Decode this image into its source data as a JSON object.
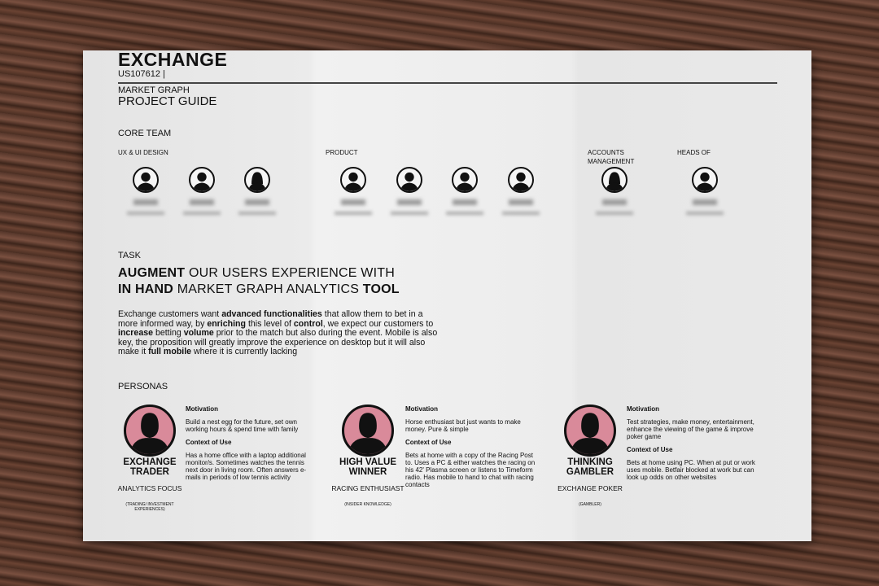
{
  "header": {
    "title": "EXCHANGE",
    "code": "US107612 |",
    "subtitle_small": "MARKET GRAPH",
    "subtitle": "PROJECT GUIDE"
  },
  "core_team": {
    "heading": "CORE TEAM",
    "groups": [
      {
        "label": "UX & UI DESIGN",
        "members": [
          "male",
          "male",
          "female"
        ]
      },
      {
        "label": "PRODUCT",
        "members": [
          "male",
          "male",
          "male",
          "male"
        ]
      },
      {
        "label": "ACCOUNTS MANAGEMENT",
        "members": [
          "female"
        ]
      },
      {
        "label": "HEADS OF",
        "members": [
          "male"
        ]
      }
    ]
  },
  "task": {
    "heading": "TASK",
    "headline_line1": [
      {
        "t": "AUGMENT",
        "b": true
      },
      {
        "t": " OUR USERS EXPERIENCE WITH",
        "b": false
      }
    ],
    "headline_line2": [
      {
        "t": "IN HAND",
        "b": true
      },
      {
        "t": " MARKET GRAPH ANALYTICS ",
        "b": false
      },
      {
        "t": "TOOL",
        "b": true
      }
    ],
    "body": [
      {
        "t": "Exchange customers want ",
        "b": false
      },
      {
        "t": "advanced functionalities",
        "b": true
      },
      {
        "t": " that allow them to bet in a more informed way, by ",
        "b": false
      },
      {
        "t": "enriching",
        "b": true
      },
      {
        "t": " this level of ",
        "b": false
      },
      {
        "t": "control",
        "b": true
      },
      {
        "t": ", we expect our customers to ",
        "b": false
      },
      {
        "t": "increase",
        "b": true
      },
      {
        "t": " betting ",
        "b": false
      },
      {
        "t": "volume",
        "b": true
      },
      {
        "t": " prior to the match but also during the event. Mobile is also key, the proposition will greatly improve the experience on desktop but it will also make it ",
        "b": false
      },
      {
        "t": "full mobile",
        "b": true
      },
      {
        "t": " where it is currently lacking",
        "b": false
      }
    ]
  },
  "personas": {
    "heading": "PERSONAS",
    "accent": "#d98a9a",
    "items": [
      {
        "name": "EXCHANGE TRADER",
        "focus": "ANALYTICS FOCUS",
        "note": "(TRADING/ INVESTMENT EXPERIENCES)",
        "motivation_label": "Motivation",
        "motivation": "Build a nest egg for the future, set own working hours & spend time with family",
        "context_label": "Context of Use",
        "context": "Has a home office with a laptop additional monitor/s. Sometimes watches the tennis next door in living room. Often answers e-mails in periods of low tennis activity"
      },
      {
        "name": "HIGH VALUE WINNER",
        "focus": "RACING ENTHUSIAST",
        "note": "(INSIDER KNOWLEDGE)",
        "motivation_label": "Motivation",
        "motivation": "Horse enthusiast but just wants to make money. Pure & simple",
        "context_label": "Context of Use",
        "context": "Bets at home with a copy of the Racing Post to. Uses a PC & either watches the racing on his 42' Plasma screen or listens to Timeform radio. Has mobile to hand to chat with racing contacts"
      },
      {
        "name": "THINKING GAMBLER",
        "focus": "EXCHANGE POKER",
        "note": "(GAMBLER)",
        "motivation_label": "Motivation",
        "motivation": "Test strategies, make money, entertainment, enhance the viewing of the game & improve poker game",
        "context_label": "Context of Use",
        "context": "Bets at home using PC. When at put or work uses mobile. Betfair blocked at work but can look up odds on other websites"
      }
    ]
  }
}
